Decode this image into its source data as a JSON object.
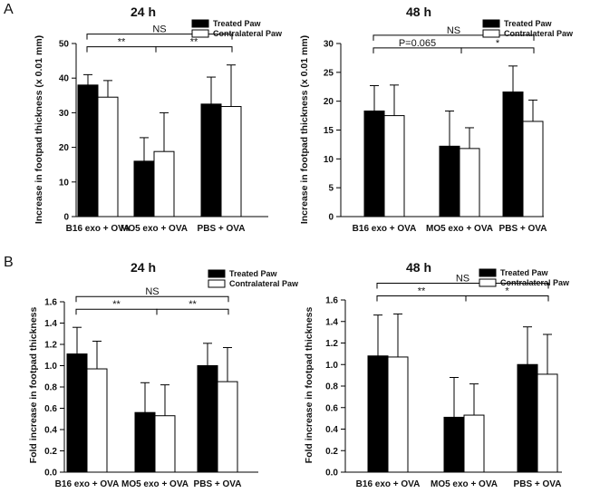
{
  "panels": [
    {
      "letter": "A"
    },
    {
      "letter": "B"
    }
  ],
  "chart_data": [
    {
      "type": "bar",
      "panel": "A",
      "title": "24 h",
      "ylabel": "Increase in footpad thickness (x 0.01 mm)",
      "xlabel": "",
      "ylim": [
        0,
        50
      ],
      "yticks": [
        0,
        10,
        20,
        30,
        40,
        50
      ],
      "ytick_labels": [
        "0",
        "10",
        "20",
        "30",
        "40",
        "50"
      ],
      "categories": [
        "B16 exo + OVA",
        "MO5 exo + OVA",
        "PBS + OVA"
      ],
      "legend_position": "top-right",
      "series": [
        {
          "name": "Treated Paw",
          "color": "#000000",
          "values": [
            38,
            16,
            32.5
          ],
          "errors": [
            3,
            6.8,
            7.8
          ]
        },
        {
          "name": "Contralateral Paw",
          "color": "#ffffff",
          "values": [
            34.5,
            18.8,
            31.8
          ],
          "errors": [
            4.8,
            11.2,
            12
          ]
        }
      ],
      "comparisons": [
        {
          "from": 0,
          "to": 1,
          "label": "**",
          "level": 1
        },
        {
          "from": 1,
          "to": 2,
          "label": "**",
          "level": 1
        },
        {
          "from": 0,
          "to": 2,
          "label": "NS",
          "level": 2
        }
      ]
    },
    {
      "type": "bar",
      "panel": "A",
      "title": "48 h",
      "ylabel": "Increase in footpad thickness (x 0.01 mm)",
      "xlabel": "",
      "ylim": [
        0,
        30
      ],
      "yticks": [
        0,
        5,
        10,
        15,
        20,
        25,
        30
      ],
      "ytick_labels": [
        "0",
        "5",
        "10",
        "15",
        "20",
        "25",
        "30"
      ],
      "categories": [
        "B16 exo + OVA",
        "MO5 exo + OVA",
        "PBS + OVA"
      ],
      "legend_position": "top-right",
      "series": [
        {
          "name": "Treated Paw",
          "color": "#000000",
          "values": [
            18.3,
            12.2,
            21.6
          ],
          "errors": [
            4.4,
            6.1,
            4.5
          ]
        },
        {
          "name": "Contralateral Paw",
          "color": "#ffffff",
          "values": [
            17.5,
            11.8,
            16.5
          ],
          "errors": [
            5.3,
            3.6,
            3.7
          ]
        }
      ],
      "comparisons": [
        {
          "from": 0,
          "to": 1,
          "label": "P=0.065",
          "level": 1
        },
        {
          "from": 1,
          "to": 2,
          "label": "*",
          "level": 1
        },
        {
          "from": 0,
          "to": 2,
          "label": "NS",
          "level": 2
        }
      ]
    },
    {
      "type": "bar",
      "panel": "B",
      "title": "24 h",
      "ylabel": "Fold increase in footpad thickness",
      "xlabel": "",
      "ylim": [
        0,
        1.6
      ],
      "yticks": [
        0,
        0.2,
        0.4,
        0.6,
        0.8,
        1.0,
        1.2,
        1.4,
        1.6
      ],
      "ytick_labels": [
        "0.0",
        "0.2",
        "0.4",
        "0.6",
        "0.8",
        "1.0",
        "1.2",
        "1.4",
        "1.6"
      ],
      "categories": [
        "B16 exo + OVA",
        "MO5 exo + OVA",
        "PBS + OVA"
      ],
      "legend_position": "top-right",
      "series": [
        {
          "name": "Treated Paw",
          "color": "#000000",
          "values": [
            1.11,
            0.56,
            1.0
          ],
          "errors": [
            0.25,
            0.28,
            0.21
          ]
        },
        {
          "name": "Contralateral Paw",
          "color": "#ffffff",
          "values": [
            0.97,
            0.53,
            0.85
          ],
          "errors": [
            0.26,
            0.29,
            0.32
          ]
        }
      ],
      "comparisons": [
        {
          "from": 0,
          "to": 1,
          "label": "**",
          "level": 1
        },
        {
          "from": 1,
          "to": 2,
          "label": "**",
          "level": 1
        },
        {
          "from": 0,
          "to": 2,
          "label": "NS",
          "level": 2
        }
      ]
    },
    {
      "type": "bar",
      "panel": "B",
      "title": "48 h",
      "ylabel": "Fold increase in footpad thickness",
      "xlabel": "",
      "ylim": [
        0,
        1.6
      ],
      "yticks": [
        0,
        0.2,
        0.4,
        0.6,
        0.8,
        1.0,
        1.2,
        1.4,
        1.6
      ],
      "ytick_labels": [
        "0.0",
        "0.2",
        "0.4",
        "0.6",
        "0.8",
        "1.0",
        "1.2",
        "1.4",
        "1.6"
      ],
      "categories": [
        "B16 exo + OVA",
        "MO5 exo + OVA",
        "PBS + OVA"
      ],
      "legend_position": "top-right",
      "series": [
        {
          "name": "Treated Paw",
          "color": "#000000",
          "values": [
            1.08,
            0.51,
            1.0
          ],
          "errors": [
            0.38,
            0.37,
            0.35
          ]
        },
        {
          "name": "Contralateral Paw",
          "color": "#ffffff",
          "values": [
            1.07,
            0.53,
            0.91
          ],
          "errors": [
            0.4,
            0.29,
            0.37
          ]
        }
      ],
      "comparisons": [
        {
          "from": 0,
          "to": 1,
          "label": "**",
          "level": 1
        },
        {
          "from": 1,
          "to": 2,
          "label": "*",
          "level": 1
        },
        {
          "from": 0,
          "to": 2,
          "label": "NS",
          "level": 2
        }
      ]
    }
  ]
}
